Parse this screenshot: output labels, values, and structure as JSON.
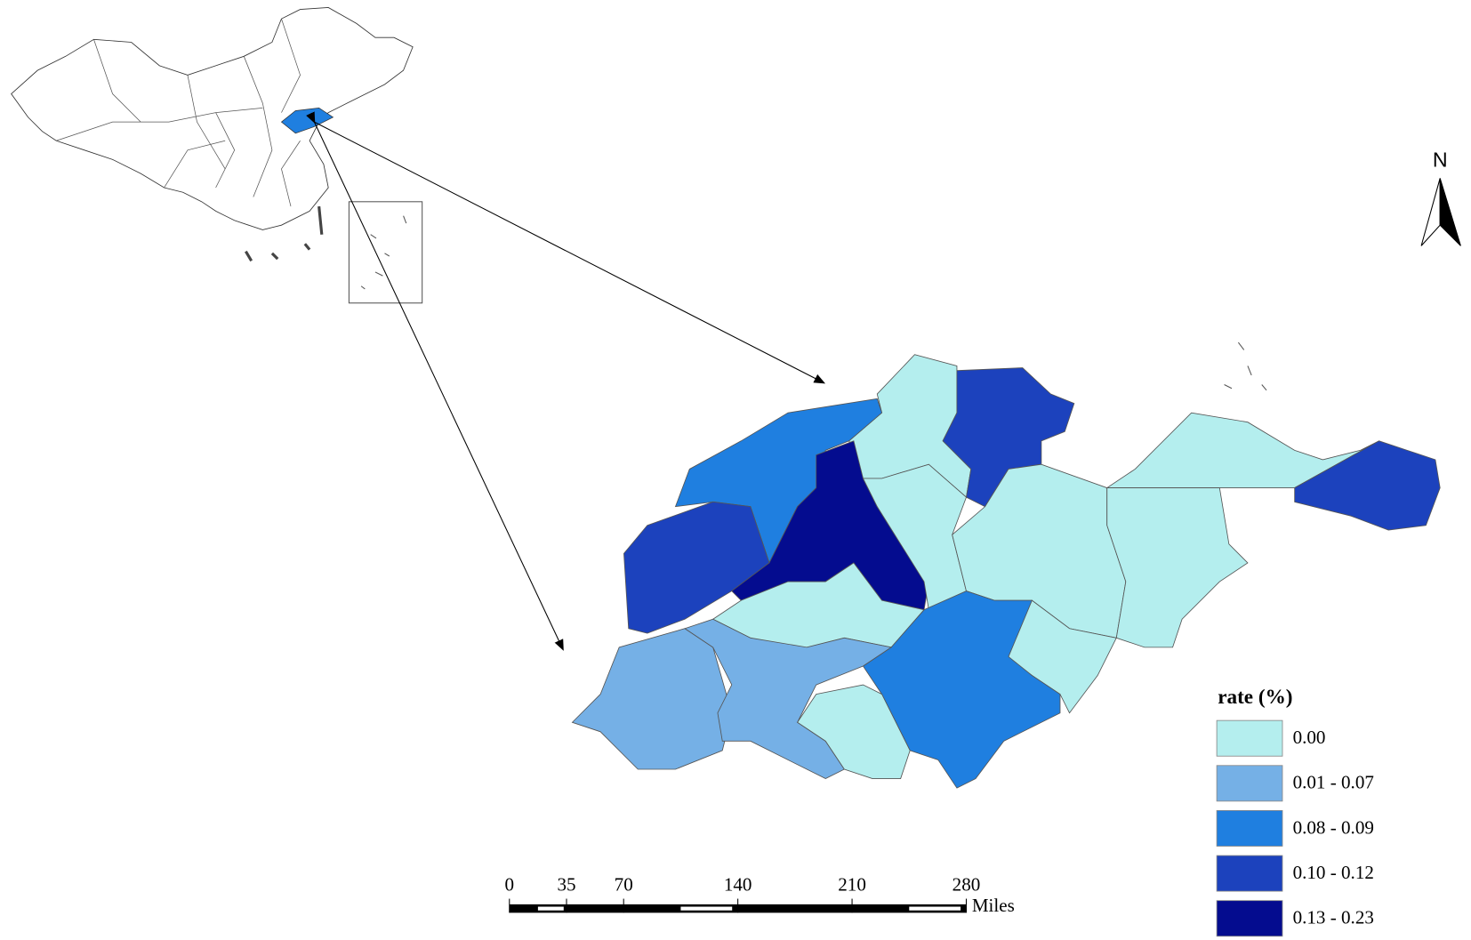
{
  "map": {
    "legend": {
      "title": "rate (%)",
      "items": [
        {
          "label": "0.00",
          "color": "#b4eeee"
        },
        {
          "label": "0.01 - 0.07",
          "color": "#75b0e6"
        },
        {
          "label": "0.08 - 0.09",
          "color": "#1f7fe0"
        },
        {
          "label": "0.10 - 0.12",
          "color": "#1c42bd"
        },
        {
          "label": "0.13 - 0.23",
          "color": "#040c8f"
        }
      ]
    },
    "scale_bar": {
      "ticks": [
        0,
        35,
        70,
        140,
        210,
        280
      ],
      "unit": "Miles"
    },
    "north_arrow": {
      "label": "N"
    }
  }
}
